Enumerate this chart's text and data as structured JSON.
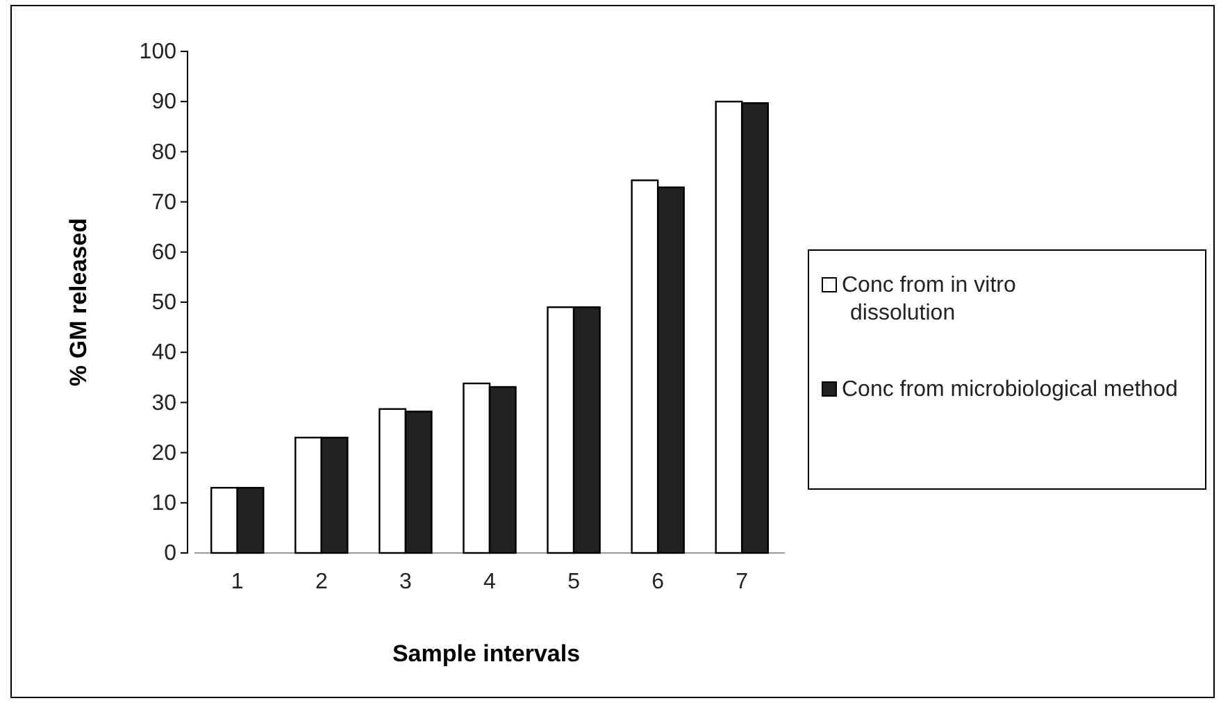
{
  "chart_data": {
    "type": "bar",
    "xlabel": "Sample intervals",
    "ylabel": "% GM released",
    "categories": [
      "1",
      "2",
      "3",
      "4",
      "5",
      "6",
      "7"
    ],
    "series": [
      {
        "name": "Conc from in vitro dissolution",
        "color": "#ffffff",
        "values": [
          13,
          23,
          28.7,
          33.8,
          49,
          74.3,
          90
        ]
      },
      {
        "name": "Conc from microbiological method",
        "color": "#222222",
        "values": [
          13,
          23,
          28.2,
          33.1,
          49,
          72.9,
          89.7
        ]
      }
    ],
    "ylim": [
      0,
      100
    ],
    "yticks": [
      0,
      10,
      20,
      30,
      40,
      50,
      60,
      70,
      80,
      90,
      100
    ],
    "grid": false,
    "legend": "right"
  }
}
